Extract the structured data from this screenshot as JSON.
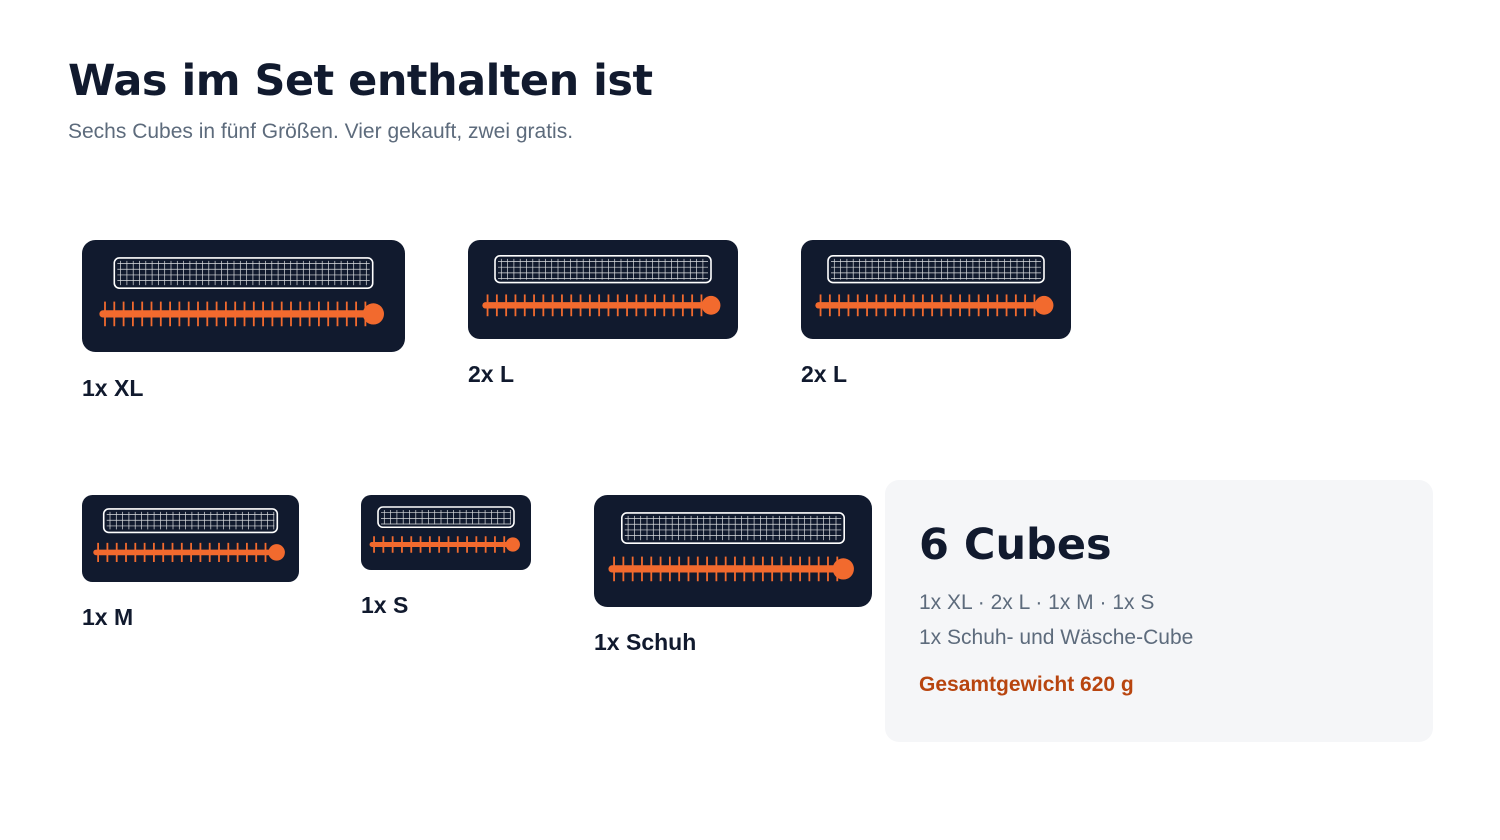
{
  "title": "Was im Set enthalten ist",
  "subtitle": "Sechs Cubes in fünf Größen. Vier gekauft, zwei gratis.",
  "colors": {
    "cube_body": "#111a2e",
    "zipper": "#f26a2e",
    "mesh": "#ffffff",
    "accent_text": "#b8450f"
  },
  "cubes": [
    {
      "label": "1x XL"
    },
    {
      "label": "2x L"
    },
    {
      "label": "2x L"
    },
    {
      "label": "1x M"
    },
    {
      "label": "1x S"
    },
    {
      "label": "1x Schuh"
    }
  ],
  "summary": {
    "count": "6 Cubes",
    "line1": "1x XL · 2x L · 1x M · 1x S",
    "line2": "1x Schuh- und Wäsche-Cube",
    "weight": "Gesamtgewicht 620 g"
  }
}
